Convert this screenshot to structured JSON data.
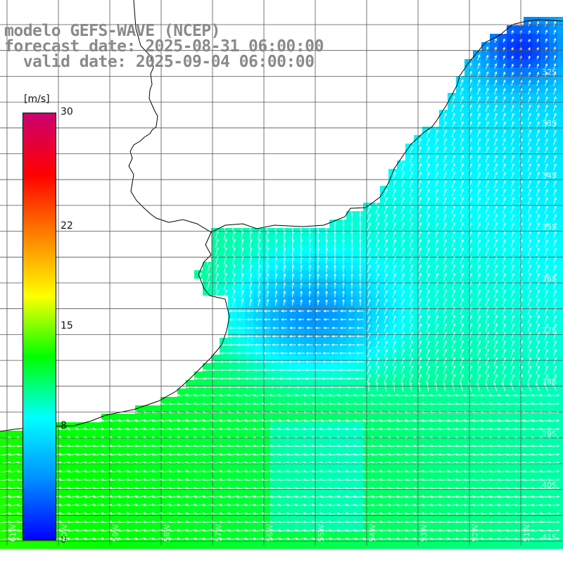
{
  "title": {
    "line1": "modelo GEFS-WAVE (NCEP)",
    "line2": "forecast date: 2025-08-31 06:00:00",
    "line3": "  valid date: 2025-09-04 06:00:00"
  },
  "colorbar": {
    "unit": "[m/s]",
    "ticks": [
      {
        "label": "30",
        "value": 30
      },
      {
        "label": "22",
        "value": 22
      },
      {
        "label": "15",
        "value": 15
      },
      {
        "label": "8",
        "value": 8
      },
      {
        "label": "0",
        "value": 0
      }
    ],
    "vmin": 0,
    "vmax": 30,
    "colors": [
      "#0000ff",
      "#0090ff",
      "#00ffff",
      "#00ff00",
      "#ffff00",
      "#ff8000",
      "#ff0000",
      "#cc0070"
    ]
  },
  "axes": {
    "lat_labels": [
      "32S",
      "33S",
      "34S",
      "35S",
      "36S",
      "37S",
      "38S",
      "39S",
      "40S",
      "41S"
    ],
    "lon_labels": [
      "61W",
      "60W",
      "59W",
      "58W",
      "57W",
      "56W",
      "55W",
      "54W",
      "53W",
      "52W",
      "51W"
    ]
  },
  "land_color": "#ffffff",
  "grid_color": "#555555",
  "coast_color": "#000000",
  "arrow_color": "#ffffff"
}
